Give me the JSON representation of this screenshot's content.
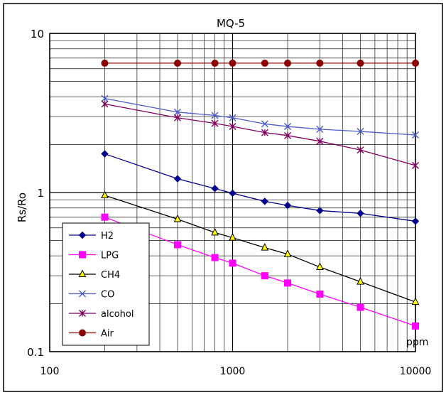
{
  "chart_data": {
    "type": "line",
    "title": "MQ-5",
    "xlabel": "",
    "ylabel": "Rs/Ro",
    "x_unit_label": "ppm",
    "x_scale": "log",
    "y_scale": "log",
    "xlim": [
      100,
      10000
    ],
    "ylim": [
      0.1,
      10
    ],
    "x_tick_labels": [
      "100",
      "1000",
      "10000"
    ],
    "y_tick_labels": [
      "0.1",
      "1",
      "10"
    ],
    "grid": true,
    "legend_position": "bottom-left",
    "x": [
      200,
      500,
      800,
      1000,
      1500,
      2000,
      3000,
      5000,
      10000
    ],
    "series": [
      {
        "name": "H2",
        "color": "#00008b",
        "marker": "diamond",
        "values": [
          1.75,
          1.22,
          1.06,
          0.99,
          0.88,
          0.83,
          0.77,
          0.74,
          0.66
        ]
      },
      {
        "name": "LPG",
        "color": "#ff00ff",
        "marker": "square",
        "values": [
          0.7,
          0.47,
          0.39,
          0.36,
          0.3,
          0.27,
          0.23,
          0.19,
          0.145
        ]
      },
      {
        "name": "CH4",
        "color": "#000000",
        "marker_fill": "#ffff00",
        "marker": "triangle",
        "values": [
          0.96,
          0.68,
          0.56,
          0.52,
          0.45,
          0.41,
          0.34,
          0.275,
          0.205
        ]
      },
      {
        "name": "CO",
        "color": "#4a5cc8",
        "marker": "x",
        "values": [
          3.9,
          3.2,
          3.05,
          2.95,
          2.7,
          2.6,
          2.5,
          2.42,
          2.3
        ]
      },
      {
        "name": "alcohol",
        "color": "#800060",
        "marker": "star",
        "values": [
          3.6,
          2.95,
          2.72,
          2.6,
          2.38,
          2.28,
          2.1,
          1.85,
          1.48
        ]
      },
      {
        "name": "Air",
        "color": "#8b0000",
        "marker": "circle",
        "values": [
          6.5,
          6.5,
          6.5,
          6.5,
          6.5,
          6.5,
          6.5,
          6.5,
          6.5
        ]
      }
    ]
  }
}
